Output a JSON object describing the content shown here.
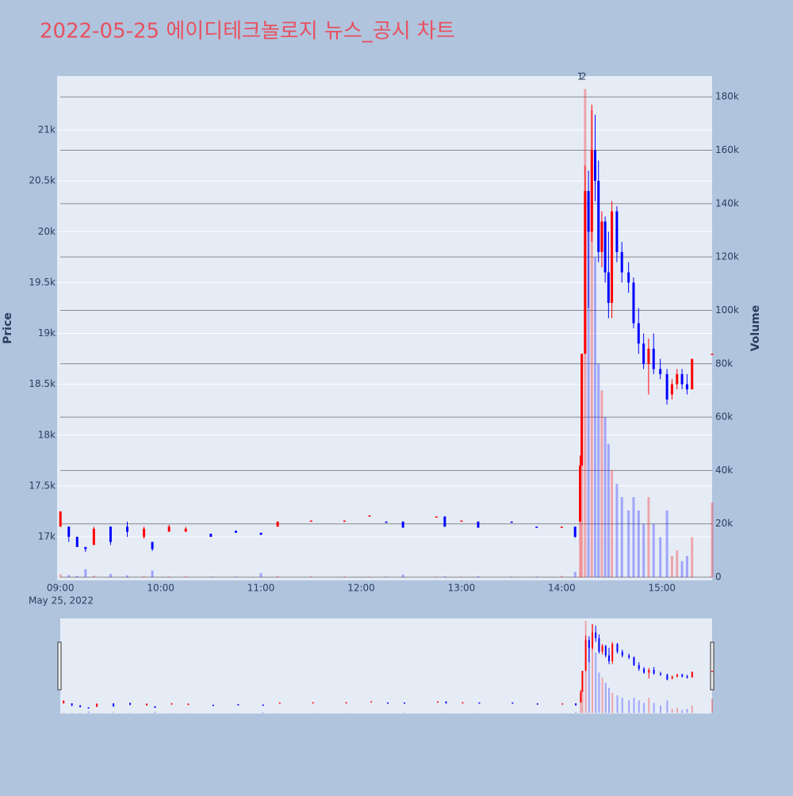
{
  "chart_data": {
    "type": "candlestick",
    "title": "2022-05-25 에이디테크놀로지 뉴스_공시 차트",
    "y_title": "Price",
    "y2_title": "Volume",
    "x_date_label": "May 25, 2022",
    "up_color": "#ff0000",
    "down_color": "#0000ff",
    "x": [
      "09:00",
      "09:05",
      "09:10",
      "09:15",
      "09:20",
      "09:30",
      "09:40",
      "09:50",
      "09:55",
      "10:05",
      "10:15",
      "10:30",
      "10:45",
      "11:00",
      "11:10",
      "11:30",
      "11:50",
      "12:05",
      "12:15",
      "12:25",
      "12:45",
      "12:50",
      "13:00",
      "13:10",
      "13:30",
      "13:45",
      "14:00",
      "14:08",
      "14:11",
      "14:12",
      "14:14",
      "14:16",
      "14:18",
      "14:20",
      "14:22",
      "14:24",
      "14:26",
      "14:28",
      "14:30",
      "14:33",
      "14:36",
      "14:40",
      "14:43",
      "14:46",
      "14:49",
      "14:52",
      "14:55",
      "14:59",
      "15:03",
      "15:06",
      "15:09",
      "15:12",
      "15:15",
      "15:18",
      "15:30"
    ],
    "open": [
      17100,
      17100,
      17000,
      16900,
      16920,
      17100,
      17100,
      17000,
      16950,
      17050,
      17050,
      17030,
      17060,
      17040,
      17100,
      17150,
      17150,
      17200,
      17150,
      17150,
      17200,
      17200,
      17150,
      17150,
      17150,
      17100,
      17100,
      17100,
      17150,
      17700,
      18800,
      20400,
      20000,
      20800,
      20500,
      19800,
      20100,
      19600,
      19300,
      20200,
      19800,
      19600,
      19500,
      19100,
      18900,
      18700,
      18850,
      18650,
      18600,
      18400,
      18500,
      18600,
      18500,
      18450,
      18800
    ],
    "high": [
      17250,
      17100,
      17000,
      16900,
      17100,
      17100,
      17150,
      17100,
      16950,
      17120,
      17100,
      17030,
      17060,
      17040,
      17150,
      17160,
      17160,
      17210,
      17150,
      17150,
      17200,
      17200,
      17160,
      17150,
      17150,
      17100,
      17100,
      17100,
      17800,
      18800,
      20650,
      20600,
      21250,
      21150,
      20700,
      20200,
      20150,
      20000,
      20300,
      20250,
      19900,
      19700,
      19550,
      19250,
      19000,
      18950,
      19000,
      18750,
      18650,
      18550,
      18650,
      18650,
      18600,
      18750,
      18800
    ],
    "low": [
      17100,
      16950,
      16900,
      16850,
      16920,
      16920,
      17000,
      16980,
      16860,
      17050,
      17050,
      17000,
      17040,
      17020,
      17100,
      17150,
      17150,
      17200,
      17140,
      17090,
      17190,
      17100,
      17150,
      17090,
      17140,
      17090,
      17090,
      16990,
      17150,
      17700,
      18800,
      19250,
      19900,
      20300,
      19700,
      19650,
      19500,
      19150,
      19150,
      19700,
      19500,
      19400,
      19050,
      18800,
      18650,
      18400,
      18600,
      18550,
      18300,
      18350,
      18450,
      18450,
      18400,
      18450,
      18800
    ],
    "close": [
      17250,
      17000,
      16900,
      16880,
      17080,
      16950,
      17050,
      17080,
      16880,
      17100,
      17080,
      17000,
      17040,
      17020,
      17150,
      17160,
      17160,
      17210,
      17140,
      17090,
      17200,
      17100,
      17160,
      17090,
      17140,
      17090,
      17100,
      17000,
      17700,
      18800,
      20400,
      20000,
      20800,
      20500,
      19800,
      20100,
      19600,
      19300,
      20200,
      19800,
      19600,
      19500,
      19100,
      18900,
      18700,
      18850,
      18650,
      18600,
      18350,
      18500,
      18600,
      18500,
      18450,
      18750,
      18800
    ],
    "volume": [
      1000,
      800,
      500,
      3000,
      600,
      1200,
      700,
      400,
      2500,
      300,
      300,
      200,
      200,
      1500,
      400,
      300,
      300,
      200,
      200,
      1000,
      200,
      300,
      200,
      300,
      200,
      200,
      500,
      2000,
      30000,
      60000,
      183000,
      130000,
      175000,
      120000,
      80000,
      70000,
      60000,
      50000,
      40000,
      35000,
      30000,
      25000,
      30000,
      25000,
      20000,
      30000,
      20000,
      15000,
      25000,
      8000,
      10000,
      6000,
      8000,
      15000,
      28000
    ],
    "xlim": [
      "08:58",
      "15:30"
    ],
    "xticks": [
      "09:00",
      "10:00",
      "11:00",
      "12:00",
      "13:00",
      "14:00",
      "15:00"
    ],
    "ylim": [
      16572,
      21530
    ],
    "yticks": [
      {
        "value": 17000,
        "label": "17k"
      },
      {
        "value": 17500,
        "label": "17.5k"
      },
      {
        "value": 18000,
        "label": "18k"
      },
      {
        "value": 18500,
        "label": "18.5k"
      },
      {
        "value": 19000,
        "label": "19k"
      },
      {
        "value": 19500,
        "label": "19.5k"
      },
      {
        "value": 20000,
        "label": "20k"
      },
      {
        "value": 20500,
        "label": "20.5k"
      },
      {
        "value": 21000,
        "label": "21k"
      }
    ],
    "y2lim": [
      -1190,
      187800
    ],
    "y2ticks": [
      0,
      {
        "value": 20000,
        "label": "20k"
      },
      {
        "value": 40000,
        "label": "40k"
      },
      {
        "value": 60000,
        "label": "60k"
      },
      {
        "value": 80000,
        "label": "80k"
      },
      {
        "value": 100000,
        "label": "100k"
      },
      {
        "value": 120000,
        "label": "120k"
      },
      {
        "value": 140000,
        "label": "140k"
      },
      {
        "value": 160000,
        "label": "160k"
      },
      {
        "value": 180000,
        "label": "180k"
      }
    ],
    "annotations": [
      {
        "x": "14:11",
        "text": "1"
      },
      {
        "x": "14:12",
        "text": "2"
      }
    ],
    "grid": true,
    "rangeslider": true
  }
}
